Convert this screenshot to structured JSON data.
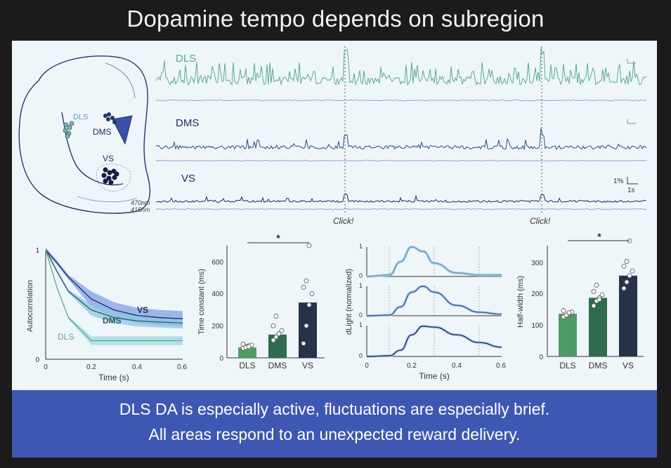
{
  "title": "Dopamine tempo depends on subregion",
  "footer": {
    "line1": "DLS DA is especially active, fluctuations are especially brief.",
    "line2": "All areas respond to an unexpected reward delivery."
  },
  "colors": {
    "dls": "#5fa98a",
    "dms": "#2d4a86",
    "vs": "#1e2a5c",
    "dls_bar": "#4f9a64",
    "dms_bar": "#2f6b4e",
    "vs_bar": "#26324a",
    "blue_band": "#7fa7e6"
  },
  "anatomy": {
    "labels": [
      "DLS",
      "DMS",
      "VS"
    ]
  },
  "traces": {
    "labels": [
      "DLS",
      "DMS",
      "VS"
    ],
    "wavelength_470": "470nm",
    "wavelength_415": "415nm",
    "click_label": "Click!",
    "scale_y": "1%",
    "scale_x": "1s"
  },
  "significance": "*",
  "chart_data": [
    {
      "type": "line",
      "xlabel": "Time (s)",
      "ylabel": "Autocorrelation",
      "xlim": [
        0,
        0.6
      ],
      "ylim": [
        0,
        1
      ],
      "xticks": [
        "0",
        "0.2",
        "0.4",
        "0.6"
      ],
      "yticks": [
        "0",
        "1"
      ],
      "series": [
        {
          "name": "VS",
          "x": [
            0,
            0.05,
            0.1,
            0.2,
            0.3,
            0.4,
            0.5,
            0.6
          ],
          "y": [
            1,
            0.88,
            0.75,
            0.55,
            0.45,
            0.4,
            0.38,
            0.37
          ]
        },
        {
          "name": "DMS",
          "x": [
            0,
            0.05,
            0.1,
            0.2,
            0.3,
            0.4,
            0.5,
            0.6
          ],
          "y": [
            1,
            0.8,
            0.62,
            0.45,
            0.38,
            0.35,
            0.34,
            0.33
          ]
        },
        {
          "name": "DLS",
          "x": [
            0,
            0.05,
            0.1,
            0.2,
            0.3,
            0.4,
            0.5,
            0.6
          ],
          "y": [
            1,
            0.65,
            0.38,
            0.17,
            0.17,
            0.17,
            0.17,
            0.17
          ]
        }
      ]
    },
    {
      "type": "bar",
      "ylabel": "Time constant (ms)",
      "categories": [
        "DLS",
        "DMS",
        "VS"
      ],
      "values": [
        65,
        145,
        345
      ],
      "ylim": [
        0,
        700
      ],
      "yticks": [
        "0",
        "200",
        "400",
        "600"
      ],
      "points": [
        [
          60,
          70,
          75,
          80,
          85,
          65,
          70
        ],
        [
          110,
          130,
          150,
          170,
          200,
          260,
          150
        ],
        [
          90,
          200,
          330,
          400,
          440,
          480,
          700
        ]
      ]
    },
    {
      "type": "line",
      "xlabel": "Time (s)",
      "ylabel": "dLight (normalized)",
      "xlim": [
        0,
        0.6
      ],
      "xticks": [
        "0",
        "0.2",
        "0.4",
        "0.6"
      ],
      "yticks": [
        "1",
        "0"
      ],
      "series": [
        {
          "name": "DLS",
          "x": [
            0,
            0.1,
            0.15,
            0.2,
            0.25,
            0.3,
            0.4,
            0.5,
            0.6
          ],
          "y": [
            0,
            0.05,
            0.5,
            1,
            0.85,
            0.45,
            0.12,
            0.05,
            0.05
          ]
        },
        {
          "name": "DMS",
          "x": [
            0,
            0.1,
            0.15,
            0.2,
            0.25,
            0.3,
            0.4,
            0.5,
            0.6
          ],
          "y": [
            0,
            0.02,
            0.3,
            0.8,
            1,
            0.8,
            0.35,
            0.12,
            0.05
          ]
        },
        {
          "name": "VS",
          "x": [
            0,
            0.1,
            0.15,
            0.2,
            0.25,
            0.3,
            0.4,
            0.5,
            0.6
          ],
          "y": [
            0,
            0.02,
            0.2,
            0.7,
            0.98,
            0.95,
            0.7,
            0.45,
            0.3
          ]
        }
      ]
    },
    {
      "type": "bar",
      "ylabel": "Half-width (ms)",
      "categories": [
        "DLS",
        "DMS",
        "VS"
      ],
      "values": [
        135,
        185,
        255
      ],
      "ylim": [
        0,
        350
      ],
      "yticks": [
        "0",
        "100",
        "200",
        "300"
      ],
      "points": [
        [
          125,
          130,
          135,
          140,
          145,
          130,
          138
        ],
        [
          160,
          175,
          185,
          195,
          205,
          225,
          180
        ],
        [
          215,
          235,
          255,
          270,
          285,
          300,
          365
        ]
      ]
    }
  ]
}
